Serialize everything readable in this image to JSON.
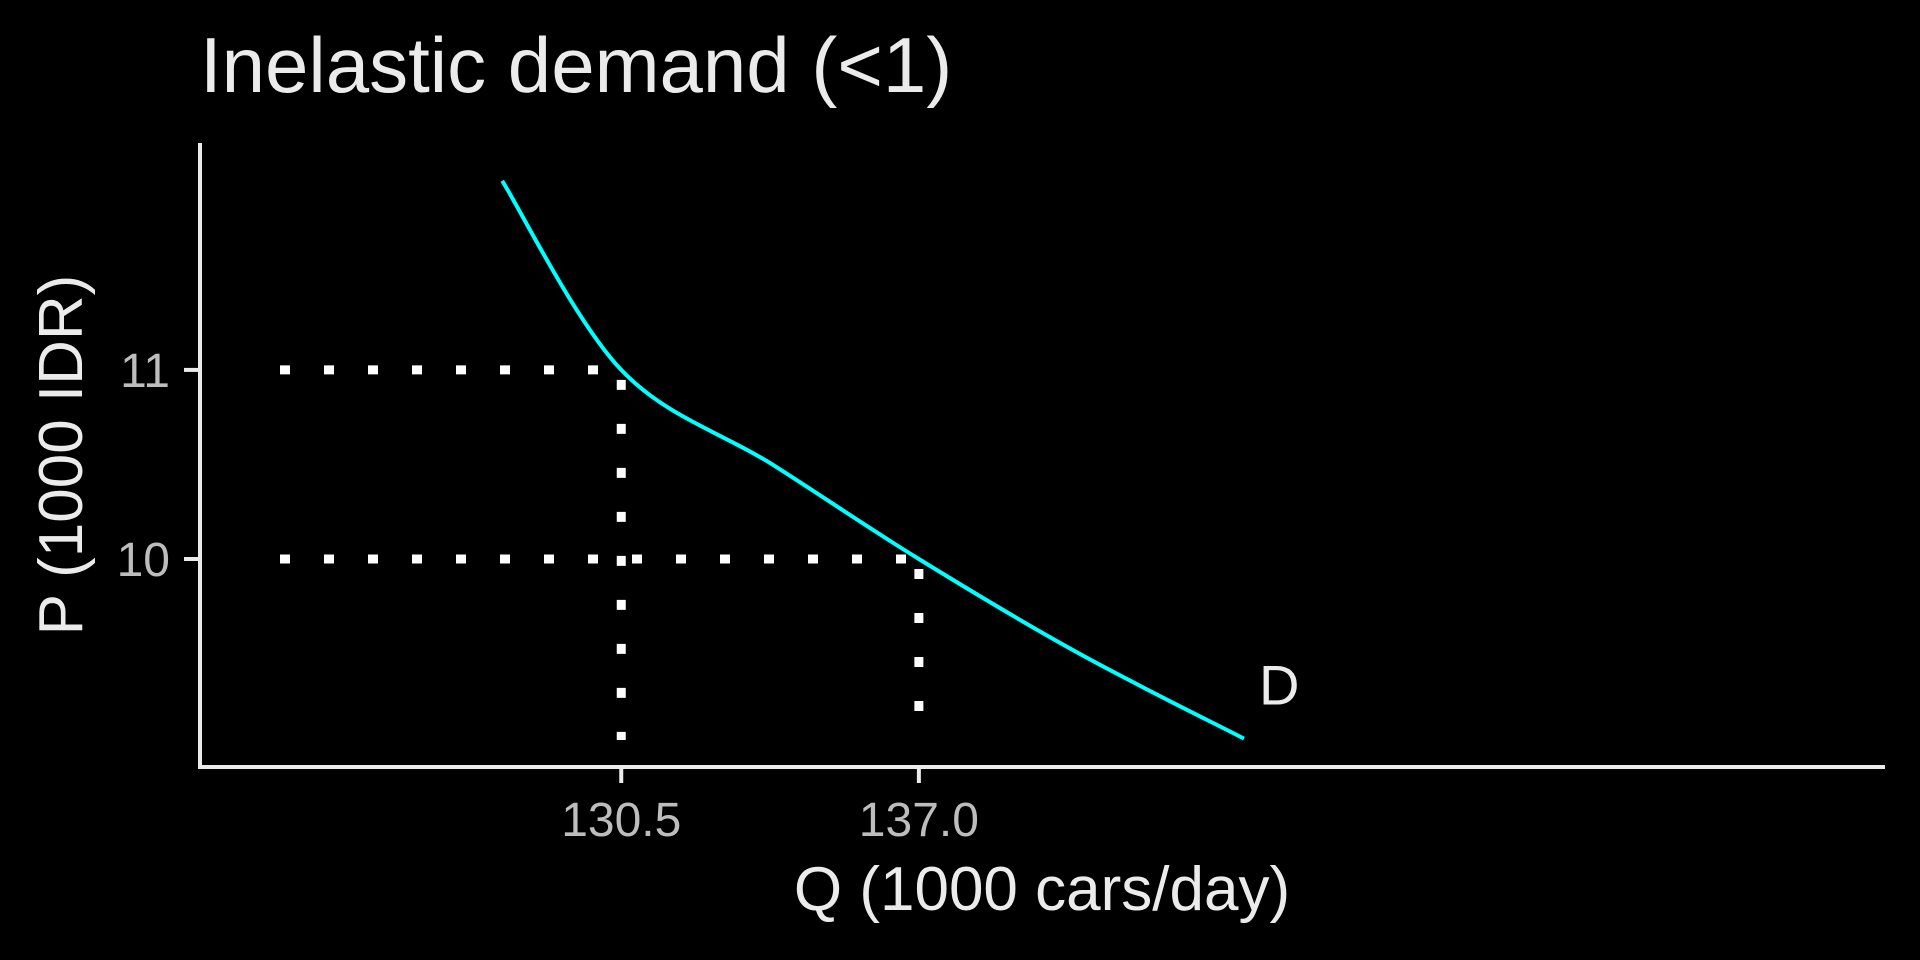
{
  "chart_data": {
    "type": "line",
    "title": "Inelastic demand (<1)",
    "xlabel": "Q (1000 cars/day)",
    "ylabel": "P (1000 IDR)",
    "xlim": [
      121.3,
      158.1
    ],
    "ylim": [
      8.9,
      12.2
    ],
    "x_ticks": [
      130.5,
      137.0
    ],
    "x_tick_labels": [
      "130.5",
      "137.0"
    ],
    "y_ticks": [
      10,
      11
    ],
    "y_tick_labels": [
      "10",
      "11"
    ],
    "grid": false,
    "legend": "none",
    "series": [
      {
        "name": "D",
        "color": "#00ffff",
        "x": [
          127.9,
          130.5,
          133.8,
          137.0,
          140.5,
          144.1
        ],
        "y": [
          12.0,
          11.0,
          10.5,
          10.0,
          9.5,
          9.05
        ]
      }
    ],
    "reference_points": [
      {
        "x": 130.5,
        "y": 11
      },
      {
        "x": 137.0,
        "y": 10
      }
    ],
    "reference_line_color": "#ffffff",
    "axis_color": "#ebebeb",
    "background": "#000000"
  }
}
